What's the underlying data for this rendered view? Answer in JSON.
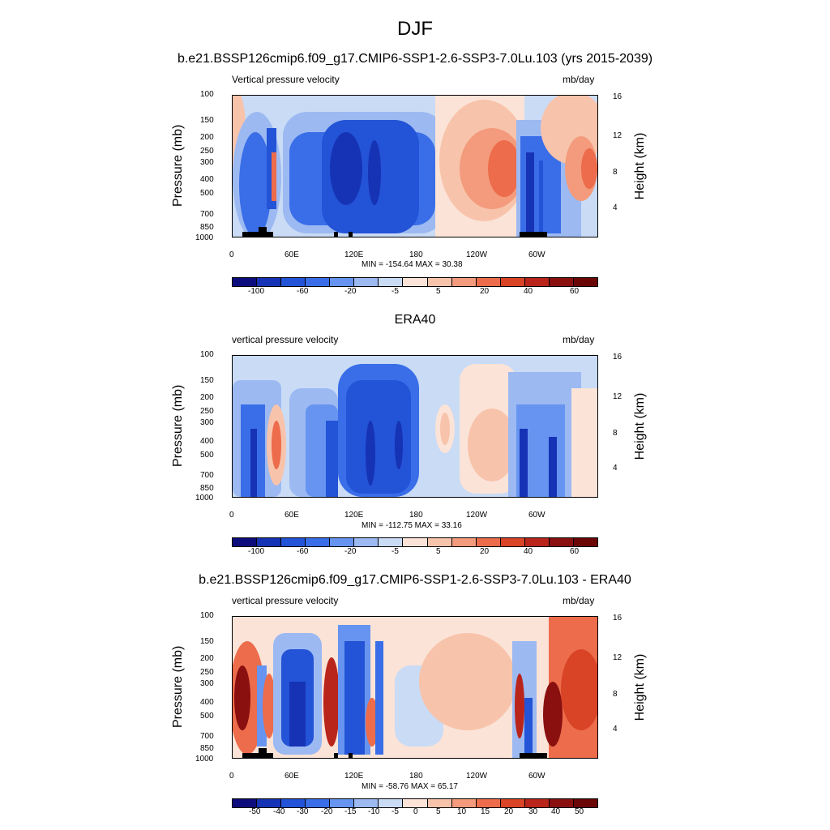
{
  "main_title": "DJF",
  "panels": [
    {
      "title": "b.e21.BSSP126cmip6.f09_g17.CMIP6-SSP1-2.6-SSP3-7.0Lu.103 (yrs 2015-2039)",
      "left_label": "Vertical pressure velocity",
      "right_label": "mb/day",
      "ylabel": "Pressure (mb)",
      "y2label": "Height (km)",
      "stats": "MIN = -154.64  MAX =  30.38",
      "cbar_labels": [
        "-100",
        "-60",
        "-20",
        "-5",
        "5",
        "20",
        "40",
        "60"
      ]
    },
    {
      "title": "ERA40",
      "left_label": "vertical pressure velocity",
      "right_label": "mb/day",
      "ylabel": "Pressure (mb)",
      "y2label": "Height (km)",
      "stats": "MIN = -112.75  MAX =  33.16",
      "cbar_labels": [
        "-100",
        "-60",
        "-20",
        "-5",
        "5",
        "20",
        "40",
        "60"
      ]
    },
    {
      "title": "b.e21.BSSP126cmip6.f09_g17.CMIP6-SSP1-2.6-SSP3-7.0Lu.103 - ERA40",
      "left_label": "vertical pressure velocity",
      "right_label": "mb/day",
      "ylabel": "Pressure (mb)",
      "y2label": "Height (km)",
      "stats": "MIN = -58.76  MAX =  65.17",
      "cbar_labels": [
        "-50",
        "-40",
        "-30",
        "-20",
        "-15",
        "-10",
        "-5",
        "0",
        "5",
        "10",
        "15",
        "20",
        "30",
        "40",
        "50"
      ]
    }
  ],
  "x_ticks": [
    "0",
    "60E",
    "120E",
    "180",
    "120W",
    "60W"
  ],
  "y_ticks": [
    "100",
    "150",
    "200",
    "250",
    "300",
    "400",
    "500",
    "700",
    "850",
    "1000"
  ],
  "y2_ticks": [
    "16",
    "12",
    "8",
    "4"
  ],
  "colors": {
    "palette": [
      "#0d0c7d",
      "#1633b5",
      "#2353d6",
      "#3a6ee8",
      "#6694f0",
      "#9cb9f2",
      "#c9dbf5",
      "#fbe3d7",
      "#f8c3ab",
      "#f39b7c",
      "#ec6c4b",
      "#d94326",
      "#b9251b",
      "#8a1010",
      "#6a0606"
    ]
  },
  "chart_data": [
    {
      "type": "heatmap",
      "title": "b.e21.BSSP126cmip6.f09_g17.CMIP6-SSP1-2.6-SSP3-7.0Lu.103 (yrs 2015-2039)",
      "field": "Vertical pressure velocity",
      "units": "mb/day",
      "x_ticks": [
        "0",
        "60E",
        "120E",
        "180",
        "120W",
        "60W"
      ],
      "y_ticks": [
        100,
        150,
        200,
        250,
        300,
        400,
        500,
        700,
        850,
        1000
      ],
      "y2_ticks_km": [
        16,
        12,
        8,
        4
      ],
      "min": -154.64,
      "max": 30.38,
      "contour_levels": [
        -100,
        -60,
        -20,
        -5,
        5,
        20,
        40,
        60
      ]
    },
    {
      "type": "heatmap",
      "title": "ERA40",
      "field": "vertical pressure velocity",
      "units": "mb/day",
      "x_ticks": [
        "0",
        "60E",
        "120E",
        "180",
        "120W",
        "60W"
      ],
      "y_ticks": [
        100,
        150,
        200,
        250,
        300,
        400,
        500,
        700,
        850,
        1000
      ],
      "y2_ticks_km": [
        16,
        12,
        8,
        4
      ],
      "min": -112.75,
      "max": 33.16,
      "contour_levels": [
        -100,
        -60,
        -20,
        -5,
        5,
        20,
        40,
        60
      ]
    },
    {
      "type": "heatmap",
      "title": "b.e21.BSSP126cmip6.f09_g17.CMIP6-SSP1-2.6-SSP3-7.0Lu.103 - ERA40",
      "field": "vertical pressure velocity",
      "units": "mb/day",
      "x_ticks": [
        "0",
        "60E",
        "120E",
        "180",
        "120W",
        "60W"
      ],
      "y_ticks": [
        100,
        150,
        200,
        250,
        300,
        400,
        500,
        700,
        850,
        1000
      ],
      "y2_ticks_km": [
        16,
        12,
        8,
        4
      ],
      "min": -58.76,
      "max": 65.17,
      "contour_levels": [
        -50,
        -40,
        -30,
        -20,
        -15,
        -10,
        -5,
        0,
        5,
        10,
        15,
        20,
        30,
        40,
        50
      ]
    }
  ]
}
